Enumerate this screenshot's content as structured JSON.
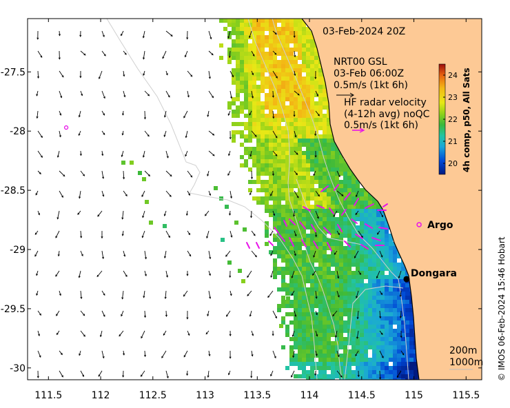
{
  "map": {
    "title": "03-Feb-2024 20Z",
    "x_ticks": [
      "111.5",
      "112",
      "112.5",
      "113",
      "113.5",
      "114",
      "114.5",
      "115",
      "115.5"
    ],
    "x_tick_values": [
      111.5,
      112,
      112.5,
      113,
      113.5,
      114,
      114.5,
      115,
      115.5
    ],
    "y_ticks": [
      "-27.5",
      "-28",
      "-28.5",
      "-29",
      "-29.5",
      "-30"
    ],
    "y_tick_values": [
      -27.5,
      -28,
      -28.5,
      -29,
      -29.5,
      -30
    ],
    "lon_range": [
      111.3,
      115.65
    ],
    "lat_range": [
      -30.1,
      -27.05
    ],
    "places": [
      {
        "label": "Argo",
        "lon": 115.05,
        "lat": -28.79,
        "marker": "circle-magenta"
      },
      {
        "label": "Dongara",
        "lon": 114.93,
        "lat": -29.25,
        "marker": "dot-black"
      }
    ],
    "extra_marker": {
      "lon": 111.67,
      "lat": -27.97,
      "marker": "circle-magenta"
    }
  },
  "legend": {
    "model_label_1": "NRT00 GSL",
    "model_label_2": "03-Feb 06:00Z",
    "model_scale": "0.5m/s (1kt 6h)",
    "radar_label_1": "HF radar velocity",
    "radar_label_2": "(4-12h avg) noQC",
    "radar_scale": "0.5m/s (1kt 6h)",
    "contour_1": "200m",
    "contour_2": "1000m"
  },
  "colorbar": {
    "ticks": [
      "24",
      "23",
      "22",
      "21",
      "20"
    ],
    "tick_values": [
      24,
      23,
      22,
      21,
      20
    ],
    "range": [
      19.5,
      24.5
    ],
    "label": "4h comp, p50, All Sats"
  },
  "credit": "© IMOS 06-Feb-2024 15:46 Hobart",
  "colors": {
    "land": "#fdc995",
    "arrow_model": "#000000",
    "arrow_radar": "#e815e8",
    "coast": "#000000",
    "bathymetry": "#cfcfcf"
  }
}
